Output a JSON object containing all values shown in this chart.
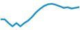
{
  "x": [
    0,
    1,
    2,
    3,
    4,
    5,
    6,
    7,
    8,
    9,
    10,
    11,
    12,
    13,
    14,
    15,
    16,
    17,
    18,
    19,
    20
  ],
  "y": [
    7.0,
    7.0,
    5.5,
    4.2,
    5.5,
    4.2,
    5.5,
    6.5,
    8.0,
    9.8,
    11.2,
    12.3,
    13.0,
    13.2,
    12.8,
    12.2,
    11.6,
    11.8,
    11.3,
    11.6,
    11.9
  ],
  "line_color": "#2090c0",
  "linewidth": 1.8,
  "background_color": "#ffffff",
  "xlim": [
    0,
    20
  ],
  "ylim": [
    3.0,
    14.5
  ]
}
